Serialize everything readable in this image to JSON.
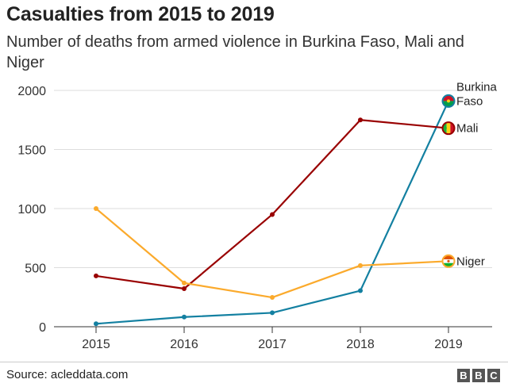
{
  "title": "Casualties from 2015 to 2019",
  "subtitle": "Number of deaths from armed violence in Burkina Faso, Mali and Niger",
  "source": "Source: acleddata.com",
  "logo": [
    "B",
    "B",
    "C"
  ],
  "chart_data": {
    "type": "line",
    "x": [
      "2015",
      "2016",
      "2017",
      "2018",
      "2019"
    ],
    "ylim": [
      0,
      2000
    ],
    "yticks": [
      0,
      500,
      1000,
      1500,
      2000
    ],
    "grid": true,
    "series": [
      {
        "name": "Burkina Faso",
        "label_lines": [
          "Burkina",
          "Faso"
        ],
        "color": "#1380a1",
        "flag": "burkina-faso-flag-icon",
        "values": [
          25,
          82,
          118,
          305,
          1910
        ]
      },
      {
        "name": "Mali",
        "label_lines": [
          "Mali"
        ],
        "color": "#990000",
        "flag": "mali-flag-icon",
        "values": [
          430,
          322,
          950,
          1750,
          1680
        ]
      },
      {
        "name": "Niger",
        "label_lines": [
          "Niger"
        ],
        "color": "#fbaa2c",
        "flag": "niger-flag-icon",
        "values": [
          1000,
          370,
          248,
          518,
          555
        ]
      }
    ]
  }
}
